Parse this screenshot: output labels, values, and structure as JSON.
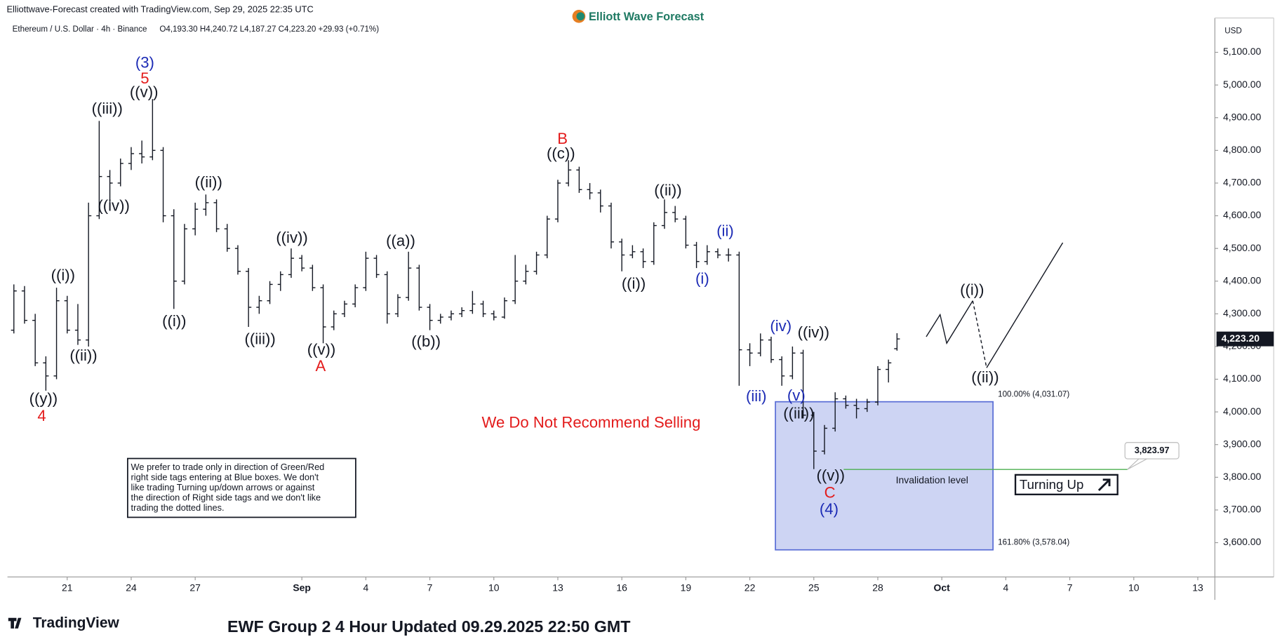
{
  "header": "Elliottwave-Forecast created with TradingView.com, Sep 29, 2025 22:35 UTC",
  "brand": "Elliott Wave Forecast",
  "footer_logo": "TradingView",
  "footer_title": "EWF Group 2 4 Hour Updated 09.29.2025 22:50 GMT",
  "chart_data": {
    "type": "ohlc",
    "symbol": "Ethereum / U.S. Dollar · 4h · Binance",
    "ohlc_legend": "O4,193.30  H4,240.72  L4,187.27  C4,223.20  +29.93 (+0.71%)",
    "currency": "USD",
    "color": "#131722",
    "grid": false,
    "xlim": [
      18.2,
      74.8
    ],
    "ylim": [
      3495,
      5205
    ],
    "xticks": [
      21,
      24,
      27,
      {
        "value": 32,
        "label": "Sep"
      },
      {
        "value": 35,
        "label": "4"
      },
      {
        "value": 38,
        "label": "7"
      },
      {
        "value": 41,
        "label": "10"
      },
      {
        "value": 44,
        "label": "13"
      },
      {
        "value": 47,
        "label": "16"
      },
      {
        "value": 50,
        "label": "19"
      },
      {
        "value": 53,
        "label": "22"
      },
      {
        "value": 56,
        "label": "25"
      },
      {
        "value": 59,
        "label": "28"
      },
      {
        "value": 62,
        "label": "Oct"
      },
      {
        "value": 65,
        "label": "4"
      },
      {
        "value": 68,
        "label": "7"
      },
      {
        "value": 71,
        "label": "10"
      },
      {
        "value": 74,
        "label": "13"
      }
    ],
    "yticks": [
      {
        "value": 3600,
        "label": "3,600.00"
      },
      {
        "value": 3700,
        "label": "3,700.00"
      },
      {
        "value": 3800,
        "label": "3,800.00"
      },
      {
        "value": 3900,
        "label": "3,900.00"
      },
      {
        "value": 4000,
        "label": "4,000.00"
      },
      {
        "value": 4100,
        "label": "4,100.00"
      },
      {
        "value": 4200,
        "label": "4,200.00"
      },
      {
        "value": 4300,
        "label": "4,300.00"
      },
      {
        "value": 4400,
        "label": "4,400.00"
      },
      {
        "value": 4500,
        "label": "4,500.00"
      },
      {
        "value": 4600,
        "label": "4,600.00"
      },
      {
        "value": 4700,
        "label": "4,700.00"
      },
      {
        "value": 4800,
        "label": "4,800.00"
      },
      {
        "value": 4900,
        "label": "4,900.00"
      },
      {
        "value": 5000,
        "label": "5,000.00"
      },
      {
        "value": 5100,
        "label": "5,100.00"
      }
    ],
    "x": [
      18.5,
      19,
      19.5,
      20,
      20.5,
      21,
      21.5,
      22,
      22.5,
      23,
      23.5,
      24,
      24.5,
      25,
      25.5,
      26,
      26.5,
      27,
      27.5,
      28,
      28.5,
      29,
      29.5,
      30,
      30.5,
      31,
      31.5,
      32,
      32.5,
      33,
      33.5,
      34,
      34.5,
      35,
      35.5,
      36,
      36.5,
      37,
      37.5,
      38,
      38.5,
      39,
      39.5,
      40,
      40.5,
      41,
      41.5,
      42,
      42.5,
      43,
      43.5,
      44,
      44.5,
      45,
      45.5,
      46,
      46.5,
      47,
      47.5,
      48,
      48.5,
      49,
      49.5,
      50,
      50.5,
      51,
      51.5,
      52,
      52.5,
      53,
      53.5,
      54,
      54.5,
      55,
      55.5,
      56,
      56.5,
      57,
      57.5,
      58,
      58.5,
      59,
      59.5,
      59.9
    ],
    "open": [
      4250,
      4370,
      4280,
      4150,
      4110,
      4340,
      4250,
      4220,
      4600,
      4720,
      4700,
      4760,
      4790,
      4780,
      4800,
      4600,
      4400,
      4560,
      4620,
      4640,
      4560,
      4500,
      4430,
      4320,
      4340,
      4390,
      4420,
      4470,
      4440,
      4380,
      4260,
      4300,
      4330,
      4380,
      4470,
      4420,
      4300,
      4350,
      4440,
      4320,
      4280,
      4290,
      4300,
      4310,
      4330,
      4300,
      4290,
      4340,
      4400,
      4430,
      4480,
      4590,
      4700,
      4740,
      4680,
      4670,
      4630,
      4520,
      4480,
      4490,
      4460,
      4570,
      4610,
      4590,
      4510,
      4460,
      4490,
      4480,
      4480,
      4190,
      4180,
      4220,
      4160,
      4110,
      4180,
      3990,
      3880,
      3950,
      4040,
      4020,
      4010,
      4030,
      4130,
      4193.3
    ],
    "high": [
      4390,
      4385,
      4300,
      4170,
      4380,
      4355,
      4330,
      4640,
      4890,
      4740,
      4775,
      4810,
      4830,
      4957,
      4810,
      4620,
      4575,
      4640,
      4665,
      4650,
      4575,
      4510,
      4440,
      4355,
      4400,
      4430,
      4500,
      4480,
      4450,
      4390,
      4310,
      4340,
      4390,
      4490,
      4480,
      4430,
      4360,
      4490,
      4450,
      4330,
      4300,
      4310,
      4320,
      4370,
      4340,
      4310,
      4350,
      4480,
      4450,
      4490,
      4600,
      4710,
      4770,
      4750,
      4700,
      4680,
      4640,
      4530,
      4510,
      4500,
      4580,
      4650,
      4630,
      4600,
      4520,
      4510,
      4500,
      4500,
      4490,
      4210,
      4240,
      4230,
      4170,
      4200,
      4190,
      4000,
      3960,
      4060,
      4050,
      4040,
      4040,
      4140,
      4160,
      4240.72
    ],
    "low": [
      4240,
      4270,
      4140,
      4065,
      4100,
      4240,
      4205,
      4200,
      4590,
      4640,
      4690,
      4740,
      4760,
      4770,
      4580,
      4315,
      4390,
      4540,
      4600,
      4550,
      4490,
      4420,
      4260,
      4300,
      4330,
      4370,
      4410,
      4430,
      4370,
      4210,
      4250,
      4290,
      4320,
      4370,
      4410,
      4270,
      4290,
      4340,
      4310,
      4250,
      4270,
      4280,
      4290,
      4300,
      4290,
      4280,
      4285,
      4330,
      4390,
      4420,
      4470,
      4580,
      4690,
      4670,
      4650,
      4610,
      4500,
      4430,
      4470,
      4440,
      4450,
      4560,
      4580,
      4500,
      4440,
      4450,
      4470,
      4460,
      4080,
      4140,
      4170,
      4150,
      4080,
      4100,
      3980,
      3825,
      3870,
      3940,
      4010,
      3980,
      4000,
      4020,
      4090,
      4187.27
    ],
    "close": [
      4370,
      4280,
      4150,
      4110,
      4340,
      4250,
      4220,
      4600,
      4720,
      4700,
      4760,
      4790,
      4780,
      4800,
      4600,
      4400,
      4560,
      4620,
      4640,
      4560,
      4500,
      4430,
      4320,
      4340,
      4390,
      4420,
      4470,
      4440,
      4380,
      4260,
      4300,
      4330,
      4380,
      4470,
      4420,
      4300,
      4350,
      4440,
      4320,
      4280,
      4290,
      4300,
      4310,
      4330,
      4300,
      4290,
      4340,
      4400,
      4430,
      4480,
      4590,
      4700,
      4740,
      4680,
      4670,
      4630,
      4520,
      4480,
      4490,
      4460,
      4570,
      4610,
      4590,
      4510,
      4460,
      4490,
      4480,
      4480,
      4190,
      4180,
      4220,
      4160,
      4110,
      4180,
      3990,
      3880,
      3950,
      4040,
      4020,
      4010,
      4030,
      4130,
      4150,
      4223.2
    ],
    "last_label": "4,223.20",
    "fib_box": {
      "x": [
        54.2,
        64.4
      ],
      "top": 4031.07,
      "bottom": 3578.04,
      "color": "#5b6fd6",
      "top_label": "100.00% (4,031.07)",
      "bottom_label": "161.80% (3,578.04)"
    },
    "invalidation": {
      "value": 3823.97,
      "x": [
        57.4,
        70.7
      ],
      "color": "#4caf50",
      "label": "Invalidation level",
      "value_label": "3,823.97"
    },
    "projection": {
      "x": [
        61.27,
        61.92,
        62.23,
        63.45,
        64.1,
        67.67
      ],
      "values": [
        4230,
        4297.5,
        4210,
        4340,
        4135,
        4517.5
      ]
    },
    "turning_label": "Turning Up",
    "warning": "We Do Not Recommend Selling",
    "disclaimer": [
      "We prefer to trade only in direction of Green/Red",
      "right side tags entering at Blue boxes. We don't",
      "like trading Turning up/down arrows or against",
      "the direction of Right side tags and we don't like",
      "trading the dotted lines."
    ],
    "wave_labels": [
      {
        "text": "(3)",
        "color": "#1c2bb5"
      },
      {
        "text": "5",
        "color": "#e31b1b"
      },
      {
        "text": "((v))",
        "color": "#131722"
      },
      {
        "text": "((iii))",
        "color": "#131722"
      },
      {
        "text": "((iv))",
        "color": "#131722"
      },
      {
        "text": "((i))",
        "color": "#131722"
      },
      {
        "text": "((ii))",
        "color": "#131722"
      },
      {
        "text": "((y))",
        "color": "#131722"
      },
      {
        "text": "4",
        "color": "#e31b1b"
      },
      {
        "text": "((ii))",
        "color": "#131722"
      },
      {
        "text": "((i))",
        "color": "#131722"
      },
      {
        "text": "((iv))",
        "color": "#131722"
      },
      {
        "text": "((iii))",
        "color": "#131722"
      },
      {
        "text": "((v))",
        "color": "#131722"
      },
      {
        "text": "A",
        "color": "#e31b1b"
      },
      {
        "text": "((a))",
        "color": "#131722"
      },
      {
        "text": "((b))",
        "color": "#131722"
      },
      {
        "text": "B",
        "color": "#e31b1b"
      },
      {
        "text": "((c))",
        "color": "#131722"
      },
      {
        "text": "((ii))",
        "color": "#131722"
      },
      {
        "text": "((i))",
        "color": "#131722"
      },
      {
        "text": "(ii)",
        "color": "#1c2bb5"
      },
      {
        "text": "(i)",
        "color": "#1c2bb5"
      },
      {
        "text": "(iv)",
        "color": "#1c2bb5"
      },
      {
        "text": "((iv))",
        "color": "#131722"
      },
      {
        "text": "(iii)",
        "color": "#1c2bb5"
      },
      {
        "text": "(v)",
        "color": "#1c2bb5"
      },
      {
        "text": "((iii))",
        "color": "#131722"
      },
      {
        "text": "((v))",
        "color": "#131722"
      },
      {
        "text": "C",
        "color": "#e31b1b"
      },
      {
        "text": "(4)",
        "color": "#1c2bb5"
      },
      {
        "text": "((i))",
        "color": "#131722"
      },
      {
        "text": "((ii))",
        "color": "#131722"
      }
    ]
  }
}
